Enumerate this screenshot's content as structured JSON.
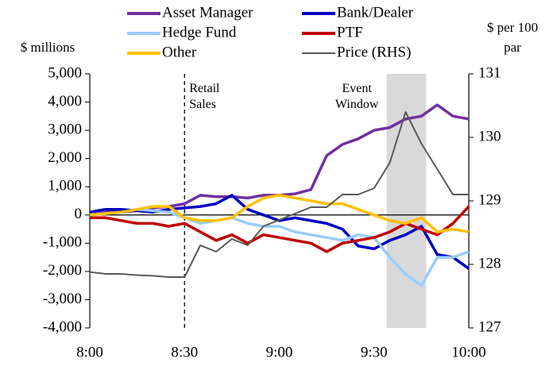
{
  "chart_data": {
    "type": "line",
    "ylabel": "$ millions",
    "y2label": "$ per 100 par",
    "x": [
      0,
      5,
      10,
      15,
      20,
      25,
      30,
      35,
      40,
      45,
      50,
      55,
      60,
      65,
      70,
      75,
      80,
      85,
      90,
      95,
      100,
      105,
      110,
      115,
      120
    ],
    "xlim": [
      0,
      120
    ],
    "xticks": [
      {
        "value": 0,
        "label": "8:00"
      },
      {
        "value": 30,
        "label": "8:30"
      },
      {
        "value": 60,
        "label": "9:00"
      },
      {
        "value": 90,
        "label": "9:30"
      },
      {
        "value": 120,
        "label": "10:00"
      }
    ],
    "ylim": [
      -4000,
      5000
    ],
    "yticks": [
      {
        "value": -4000,
        "label": "-4,000"
      },
      {
        "value": -3000,
        "label": "-3,000"
      },
      {
        "value": -2000,
        "label": "-2,000"
      },
      {
        "value": -1000,
        "label": "-1,000"
      },
      0,
      {
        "value": 1000,
        "label": "1,000"
      },
      {
        "value": 2000,
        "label": "2,000"
      },
      {
        "value": 3000,
        "label": "3,000"
      },
      {
        "value": 4000,
        "label": "4,000"
      },
      {
        "value": 5000,
        "label": "5,000"
      }
    ],
    "y2lim": [
      127,
      131
    ],
    "y2ticks": [
      127,
      128,
      129,
      130,
      131
    ],
    "annotations": [
      {
        "text": "Retail Sales",
        "x": 30
      },
      {
        "text": "Event Window",
        "x0": 94,
        "x1": 106.5
      }
    ],
    "series": [
      {
        "name": "Asset Manager",
        "color": "#7030a0",
        "values": [
          0,
          100,
          100,
          150,
          250,
          300,
          400,
          700,
          650,
          650,
          600,
          700,
          700,
          750,
          900,
          2100,
          2500,
          2700,
          3000,
          3100,
          3400,
          3500,
          3900,
          3500,
          3400
        ]
      },
      {
        "name": "Bank/Dealer",
        "color": "#0000c0",
        "values": [
          100,
          200,
          200,
          150,
          100,
          200,
          250,
          300,
          400,
          700,
          200,
          0,
          -200,
          -100,
          -200,
          -300,
          -500,
          -1100,
          -1200,
          -900,
          -700,
          -400,
          -1400,
          -1500,
          -1900
        ]
      },
      {
        "name": "Hedge Fund",
        "color": "#99ccff",
        "values": [
          0,
          50,
          100,
          200,
          150,
          100,
          -100,
          -300,
          -200,
          -100,
          -300,
          -400,
          -400,
          -600,
          -700,
          -800,
          -900,
          -700,
          -800,
          -1500,
          -2100,
          -2500,
          -1500,
          -1500,
          -1300
        ]
      },
      {
        "name": "PTF",
        "color": "#c00000",
        "values": [
          -100,
          -100,
          -200,
          -300,
          -300,
          -400,
          -300,
          -600,
          -900,
          -700,
          -1000,
          -700,
          -800,
          -900,
          -1000,
          -1300,
          -1000,
          -900,
          -800,
          -600,
          -300,
          -500,
          -700,
          -300,
          300
        ]
      },
      {
        "name": "Other",
        "color": "#ffc000",
        "values": [
          0,
          50,
          100,
          200,
          300,
          300,
          -100,
          -200,
          -200,
          -100,
          300,
          600,
          700,
          600,
          500,
          400,
          400,
          200,
          0,
          -200,
          -300,
          -100,
          -600,
          -500,
          -600
        ]
      },
      {
        "name": "Price (RHS)",
        "color": "#595959",
        "axis": "y2",
        "values": [
          127.88,
          127.85,
          127.85,
          127.83,
          127.82,
          127.8,
          127.8,
          128.3,
          128.2,
          128.4,
          128.3,
          128.6,
          128.7,
          128.8,
          128.9,
          128.9,
          129.1,
          129.1,
          129.2,
          129.6,
          130.4,
          129.9,
          129.5,
          129.1,
          129.1
        ]
      }
    ]
  }
}
